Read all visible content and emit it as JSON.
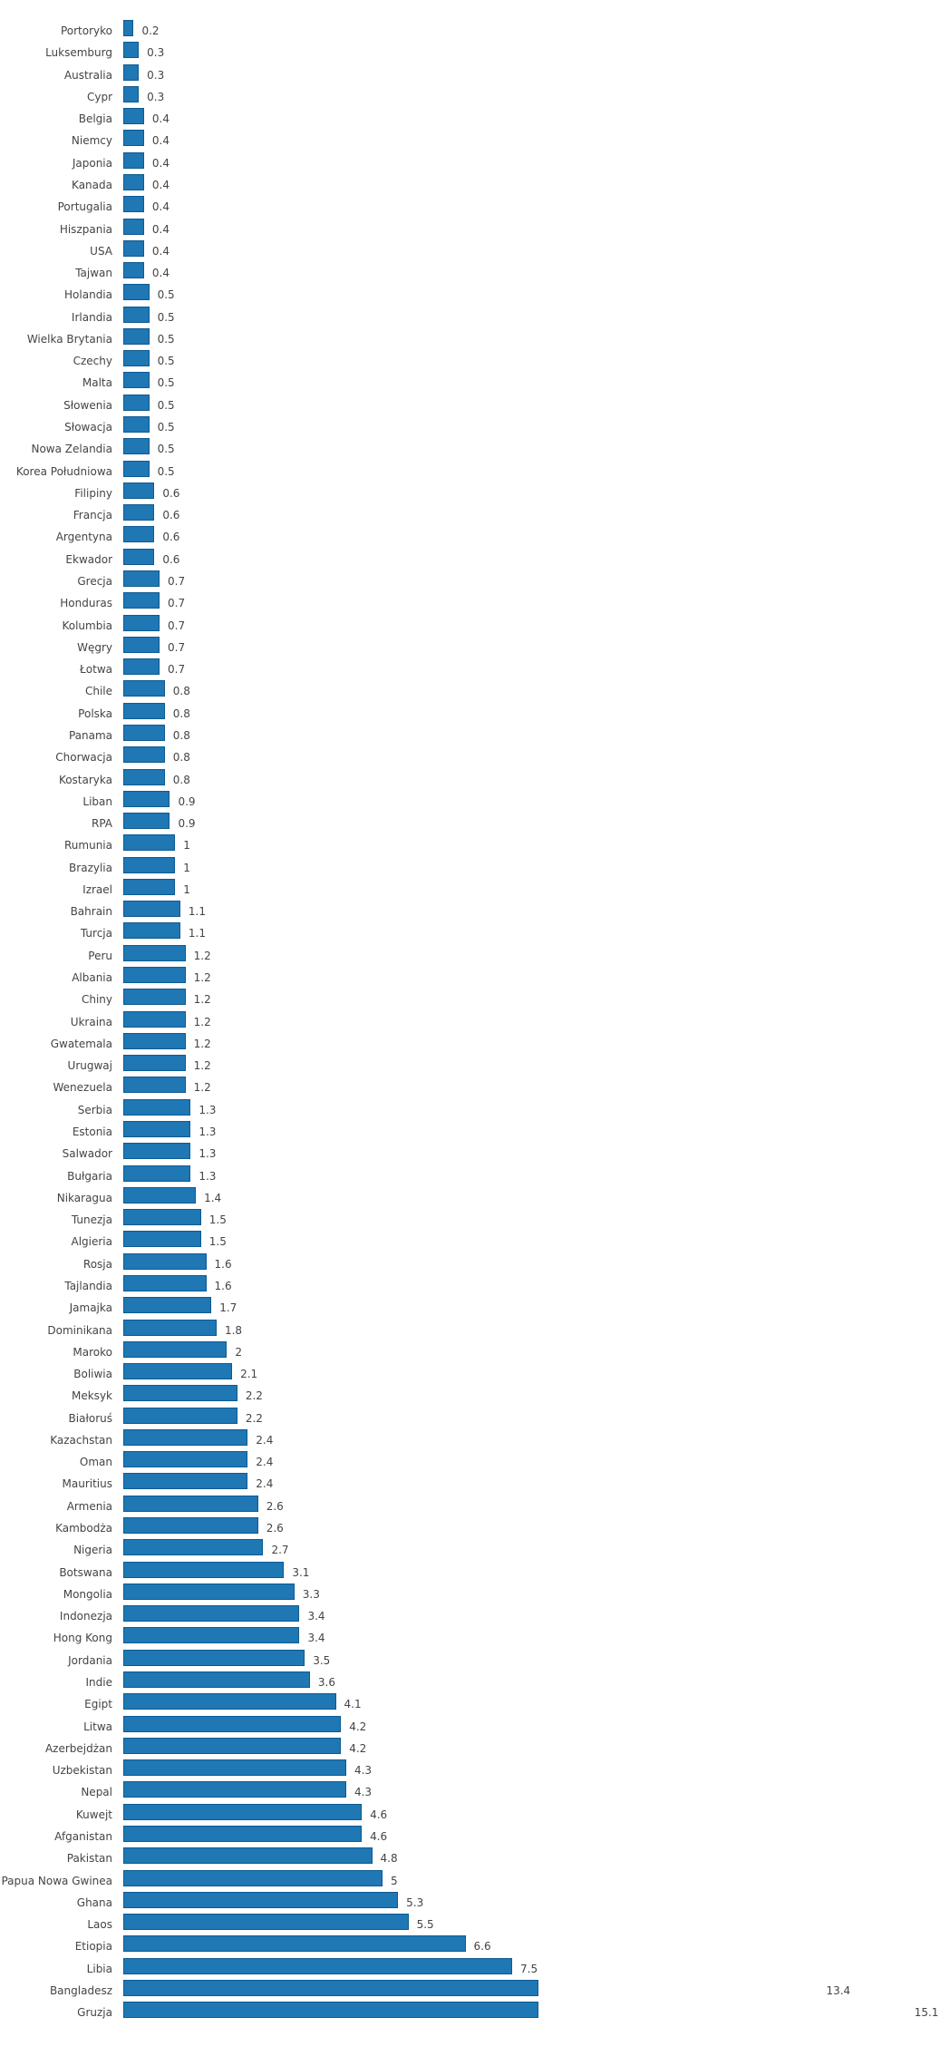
{
  "chart_data": {
    "type": "bar",
    "orientation": "horizontal",
    "title": "",
    "xlabel": "",
    "ylabel": "",
    "grid": false,
    "legend": null,
    "bar_color": "#1f77b4",
    "bar_border_color": "#0d5a92",
    "axis_clip_value": 8.0,
    "categories": [
      "Portoryko",
      "Luksemburg",
      "Australia",
      "Cypr",
      "Belgia",
      "Niemcy",
      "Japonia",
      "Kanada",
      "Portugalia",
      "Hiszpania",
      "USA",
      "Tajwan",
      "Holandia",
      "Irlandia",
      "Wielka Brytania",
      "Czechy",
      "Malta",
      "Słowenia",
      "Słowacja",
      "Nowa Zelandia",
      "Korea Południowa",
      "Filipiny",
      "Francja",
      "Argentyna",
      "Ekwador",
      "Grecja",
      "Honduras",
      "Kolumbia",
      "Węgry",
      "Łotwa",
      "Chile",
      "Polska",
      "Panama",
      "Chorwacja",
      "Kostaryka",
      "Liban",
      "RPA",
      "Rumunia",
      "Brazylia",
      "Izrael",
      "Bahrain",
      "Turcja",
      "Peru",
      "Albania",
      "Chiny",
      "Ukraina",
      "Gwatemala",
      "Urugwaj",
      "Wenezuela",
      "Serbia",
      "Estonia",
      "Salwador",
      "Bułgaria",
      "Nikaragua",
      "Tunezja",
      "Algieria",
      "Rosja",
      "Tajlandia",
      "Jamajka",
      "Dominikana",
      "Maroko",
      "Boliwia",
      "Meksyk",
      "Białoruś",
      "Kazachstan",
      "Oman",
      "Mauritius",
      "Armenia",
      "Kambodża",
      "Nigeria",
      "Botswana",
      "Mongolia",
      "Indonezja",
      "Hong Kong",
      "Jordania",
      "Indie",
      "Egipt",
      "Litwa",
      "Azerbejdżan",
      "Uzbekistan",
      "Nepal",
      "Kuwejt",
      "Afganistan",
      "Pakistan",
      "Papua Nowa Gwinea",
      "Ghana",
      "Laos",
      "Etiopia",
      "Libia",
      "Bangladesz",
      "Gruzja"
    ],
    "values": [
      0.2,
      0.3,
      0.3,
      0.3,
      0.4,
      0.4,
      0.4,
      0.4,
      0.4,
      0.4,
      0.4,
      0.4,
      0.5,
      0.5,
      0.5,
      0.5,
      0.5,
      0.5,
      0.5,
      0.5,
      0.5,
      0.6,
      0.6,
      0.6,
      0.6,
      0.7,
      0.7,
      0.7,
      0.7,
      0.7,
      0.8,
      0.8,
      0.8,
      0.8,
      0.8,
      0.9,
      0.9,
      1,
      1,
      1,
      1.1,
      1.1,
      1.2,
      1.2,
      1.2,
      1.2,
      1.2,
      1.2,
      1.2,
      1.3,
      1.3,
      1.3,
      1.3,
      1.4,
      1.5,
      1.5,
      1.6,
      1.6,
      1.7,
      1.8,
      2,
      2.1,
      2.2,
      2.2,
      2.4,
      2.4,
      2.4,
      2.6,
      2.6,
      2.7,
      3.1,
      3.3,
      3.4,
      3.4,
      3.5,
      3.6,
      4.1,
      4.2,
      4.2,
      4.3,
      4.3,
      4.6,
      4.6,
      4.8,
      5,
      5.3,
      5.5,
      6.6,
      7.5,
      13.4,
      15.1
    ],
    "value_labels": [
      "0.2",
      "0.3",
      "0.3",
      "0.3",
      "0.4",
      "0.4",
      "0.4",
      "0.4",
      "0.4",
      "0.4",
      "0.4",
      "0.4",
      "0.5",
      "0.5",
      "0.5",
      "0.5",
      "0.5",
      "0.5",
      "0.5",
      "0.5",
      "0.5",
      "0.6",
      "0.6",
      "0.6",
      "0.6",
      "0.7",
      "0.7",
      "0.7",
      "0.7",
      "0.7",
      "0.8",
      "0.8",
      "0.8",
      "0.8",
      "0.8",
      "0.9",
      "0.9",
      "1",
      "1",
      "1",
      "1.1",
      "1.1",
      "1.2",
      "1.2",
      "1.2",
      "1.2",
      "1.2",
      "1.2",
      "1.2",
      "1.3",
      "1.3",
      "1.3",
      "1.3",
      "1.4",
      "1.5",
      "1.5",
      "1.6",
      "1.6",
      "1.7",
      "1.8",
      "2",
      "2.1",
      "2.2",
      "2.2",
      "2.4",
      "2.4",
      "2.4",
      "2.6",
      "2.6",
      "2.7",
      "3.1",
      "3.3",
      "3.4",
      "3.4",
      "3.5",
      "3.6",
      "4.1",
      "4.2",
      "4.2",
      "4.3",
      "4.3",
      "4.6",
      "4.6",
      "4.8",
      "5",
      "5.3",
      "5.5",
      "6.6",
      "7.5",
      "13.4",
      "15.1"
    ]
  }
}
